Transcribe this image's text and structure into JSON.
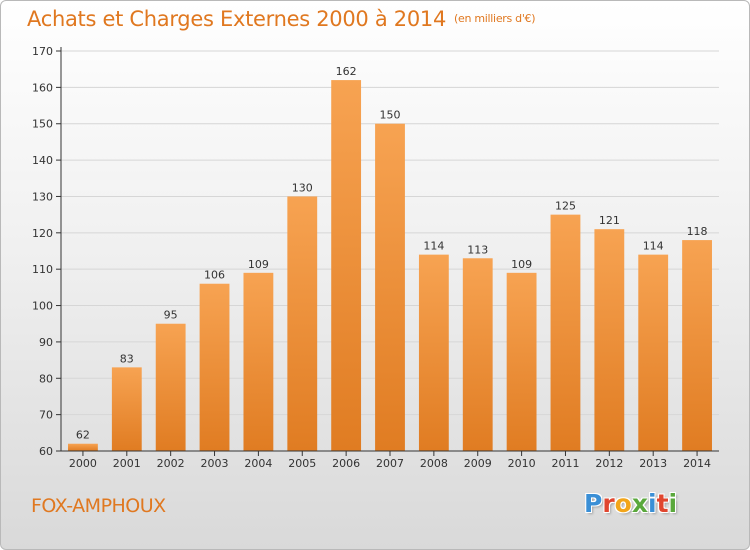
{
  "header": {
    "title": "Achats et Charges Externes 2000 à 2014",
    "unit": "(en milliers d'€)"
  },
  "footer": {
    "commune": "FOX-AMPHOUX",
    "logo_letters": [
      {
        "char": "P",
        "color": "#3a8fd6"
      },
      {
        "char": "r",
        "color": "#e0462f"
      },
      {
        "char": "o",
        "color": "#f2a51a"
      },
      {
        "char": "x",
        "color": "#5aa83c"
      },
      {
        "char": "i",
        "color": "#3a8fd6"
      },
      {
        "char": "t",
        "color": "#e0462f"
      },
      {
        "char": "i",
        "color": "#5aa83c"
      }
    ]
  },
  "colors": {
    "title": "#e07820",
    "bar_top": "#f7a352",
    "bar_bottom": "#e07c22",
    "axis": "#333333",
    "grid": "#d6d6d6"
  },
  "chart_data": {
    "type": "bar",
    "title": "Achats et Charges Externes 2000 à 2014",
    "subtitle": "(en milliers d'€)",
    "xlabel": "",
    "ylabel": "",
    "categories": [
      "2000",
      "2001",
      "2002",
      "2003",
      "2004",
      "2005",
      "2006",
      "2007",
      "2008",
      "2009",
      "2010",
      "2011",
      "2012",
      "2013",
      "2014"
    ],
    "values": [
      62,
      83,
      95,
      106,
      109,
      130,
      162,
      150,
      114,
      113,
      109,
      125,
      121,
      114,
      118
    ],
    "ylim": [
      60,
      170
    ],
    "yticks": [
      60,
      70,
      80,
      90,
      100,
      110,
      120,
      130,
      140,
      150,
      160,
      170
    ],
    "grid": true,
    "data_labels": true,
    "legend": "none"
  }
}
